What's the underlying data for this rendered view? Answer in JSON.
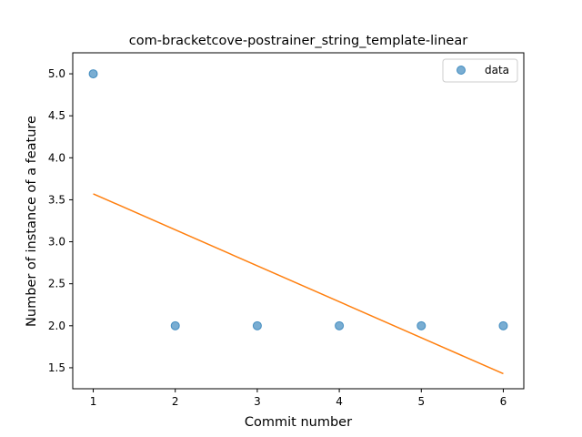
{
  "chart_data": {
    "type": "scatter",
    "title": "com-bracketcove-postrainer_string_template-linear",
    "xlabel": "Commit number",
    "ylabel": "Number of instance of a feature",
    "xlim": [
      0.75,
      6.25
    ],
    "ylim": [
      1.25,
      5.25
    ],
    "xticks": [
      1,
      2,
      3,
      4,
      5,
      6
    ],
    "yticks": [
      1.5,
      2.0,
      2.5,
      3.0,
      3.5,
      4.0,
      4.5,
      5.0
    ],
    "xtick_labels": [
      "1",
      "2",
      "3",
      "4",
      "5",
      "6"
    ],
    "ytick_labels": [
      "1.5",
      "2.0",
      "2.5",
      "3.0",
      "3.5",
      "4.0",
      "4.5",
      "5.0"
    ],
    "grid": false,
    "legend_position": "top-right",
    "series": [
      {
        "name": "data",
        "kind": "scatter",
        "color": "#1f77b4",
        "x": [
          1,
          2,
          3,
          4,
          5,
          6
        ],
        "y": [
          5.0,
          2.0,
          2.0,
          2.0,
          2.0,
          2.0
        ]
      },
      {
        "kind": "line",
        "color": "#ff7f0e",
        "x": [
          1,
          6
        ],
        "y": [
          3.571,
          1.429
        ]
      }
    ]
  }
}
